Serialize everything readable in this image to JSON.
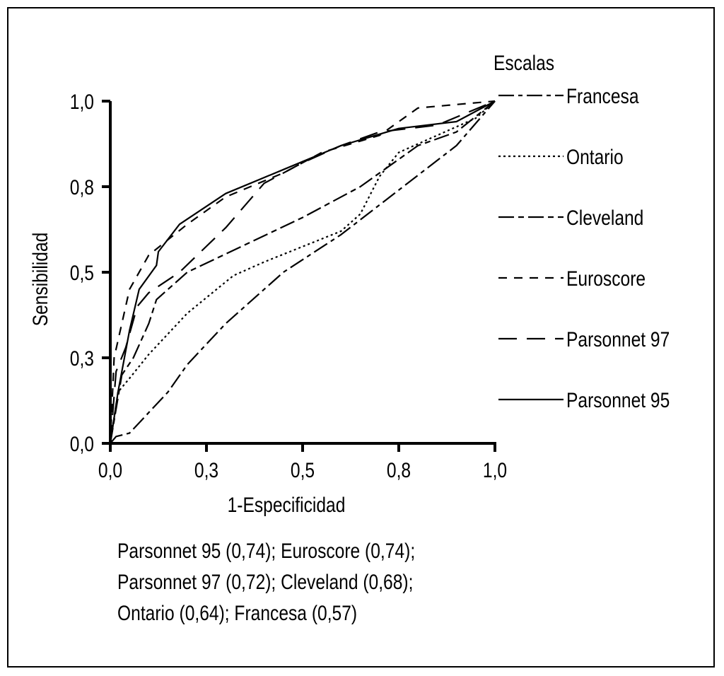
{
  "chart_data": {
    "type": "line",
    "title": "",
    "xlabel": "1-Especificidad",
    "ylabel": "Sensibilidad",
    "xlim": [
      0,
      1
    ],
    "ylim": [
      0,
      1
    ],
    "grid": false,
    "x_ticks": [
      {
        "value": 0,
        "label": "0,0"
      },
      {
        "value": 0.25,
        "label": "0,3"
      },
      {
        "value": 0.5,
        "label": "0,5"
      },
      {
        "value": 0.75,
        "label": "0,8"
      },
      {
        "value": 1,
        "label": "1,0"
      }
    ],
    "y_ticks": [
      {
        "value": 0,
        "label": "0,0"
      },
      {
        "value": 0.25,
        "label": "0,3"
      },
      {
        "value": 0.5,
        "label": "0,5"
      },
      {
        "value": 0.75,
        "label": "0,8"
      },
      {
        "value": 1,
        "label": "1,0"
      }
    ],
    "legend": {
      "title": "Escalas",
      "placement": "right"
    },
    "series": [
      {
        "name": "Francesa",
        "dash": "22,6,6,6",
        "x": [
          0,
          0.015,
          0.05,
          0.15,
          0.2,
          0.3,
          0.45,
          0.6,
          0.75,
          0.9,
          1
        ],
        "y": [
          0,
          0.02,
          0.03,
          0.15,
          0.23,
          0.35,
          0.5,
          0.61,
          0.74,
          0.87,
          1
        ]
      },
      {
        "name": "Ontario",
        "dash": "3,4",
        "x": [
          0,
          0.02,
          0.05,
          0.1,
          0.2,
          0.32,
          0.4,
          0.6,
          0.65,
          0.7,
          0.75,
          0.85,
          0.95,
          1
        ],
        "y": [
          0,
          0.15,
          0.19,
          0.26,
          0.38,
          0.49,
          0.53,
          0.62,
          0.67,
          0.78,
          0.85,
          0.9,
          0.95,
          1
        ]
      },
      {
        "name": "Cleveland",
        "dash": "22,6,8,6",
        "x": [
          0,
          0.03,
          0.06,
          0.1,
          0.12,
          0.2,
          0.35,
          0.5,
          0.65,
          0.8,
          0.9,
          1
        ],
        "y": [
          0,
          0.2,
          0.25,
          0.35,
          0.42,
          0.5,
          0.58,
          0.66,
          0.75,
          0.87,
          0.91,
          1
        ]
      },
      {
        "name": "Euroscore",
        "dash": "12,10",
        "x": [
          0,
          0.01,
          0.03,
          0.05,
          0.1,
          0.2,
          0.3,
          0.45,
          0.55,
          0.7,
          0.8,
          0.9,
          1
        ],
        "y": [
          0,
          0.25,
          0.35,
          0.45,
          0.55,
          0.64,
          0.72,
          0.79,
          0.85,
          0.9,
          0.98,
          0.99,
          1
        ]
      },
      {
        "name": "Parsonnet 97",
        "dash": "26,14",
        "x": [
          0,
          0.015,
          0.04,
          0.07,
          0.1,
          0.18,
          0.3,
          0.4,
          0.5,
          0.6,
          0.7,
          0.85,
          1
        ],
        "y": [
          0,
          0.21,
          0.28,
          0.4,
          0.44,
          0.5,
          0.63,
          0.76,
          0.82,
          0.87,
          0.91,
          0.93,
          1
        ]
      },
      {
        "name": "Parsonnet 95",
        "dash": "",
        "x": [
          0,
          0.02,
          0.05,
          0.075,
          0.12,
          0.125,
          0.18,
          0.3,
          0.45,
          0.6,
          0.75,
          0.9,
          1
        ],
        "y": [
          0,
          0.15,
          0.33,
          0.45,
          0.52,
          0.56,
          0.64,
          0.73,
          0.8,
          0.87,
          0.92,
          0.94,
          1
        ]
      }
    ],
    "annotation": [
      "Parsonnet 95 (0,74); Euroscore (0,74);",
      "Parsonnet 97 (0,72); Cleveland (0,68);",
      "Ontario (0,64); Francesa (0,57)"
    ]
  }
}
